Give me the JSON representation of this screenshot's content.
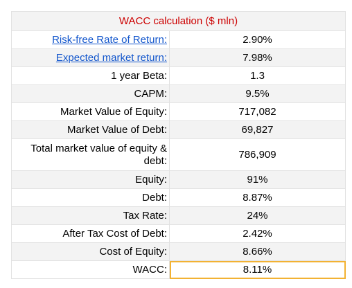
{
  "title": "WACC calculation ($ mln)",
  "rows": [
    {
      "label": "Risk-free Rate of Return:",
      "value": "2.90%"
    },
    {
      "label": "Expected market return:",
      "value": "7.98%"
    },
    {
      "label": "1 year Beta:",
      "value": "1.3"
    },
    {
      "label": "CAPM:",
      "value": "9.5%"
    },
    {
      "label": "Market Value of Equity:",
      "value": "717,082"
    },
    {
      "label": "Market Value of Debt:",
      "value": "69,827"
    },
    {
      "label": "Total market value of equity & debt:",
      "value": "786,909"
    },
    {
      "label": "Equity:",
      "value": "91%"
    },
    {
      "label": "Debt:",
      "value": "8.87%"
    },
    {
      "label": "Tax Rate:",
      "value": "24%"
    },
    {
      "label": "After Tax Cost of Debt:",
      "value": "2.42%"
    },
    {
      "label": "Cost of Equity:",
      "value": "8.66%"
    },
    {
      "label": "WACC:",
      "value": "8.11%"
    }
  ],
  "colors": {
    "title": "#cc0000",
    "link": "#1155cc",
    "selection": "#f2b233",
    "row_band": "#f3f3f3",
    "grid": "#e2e2e2"
  }
}
